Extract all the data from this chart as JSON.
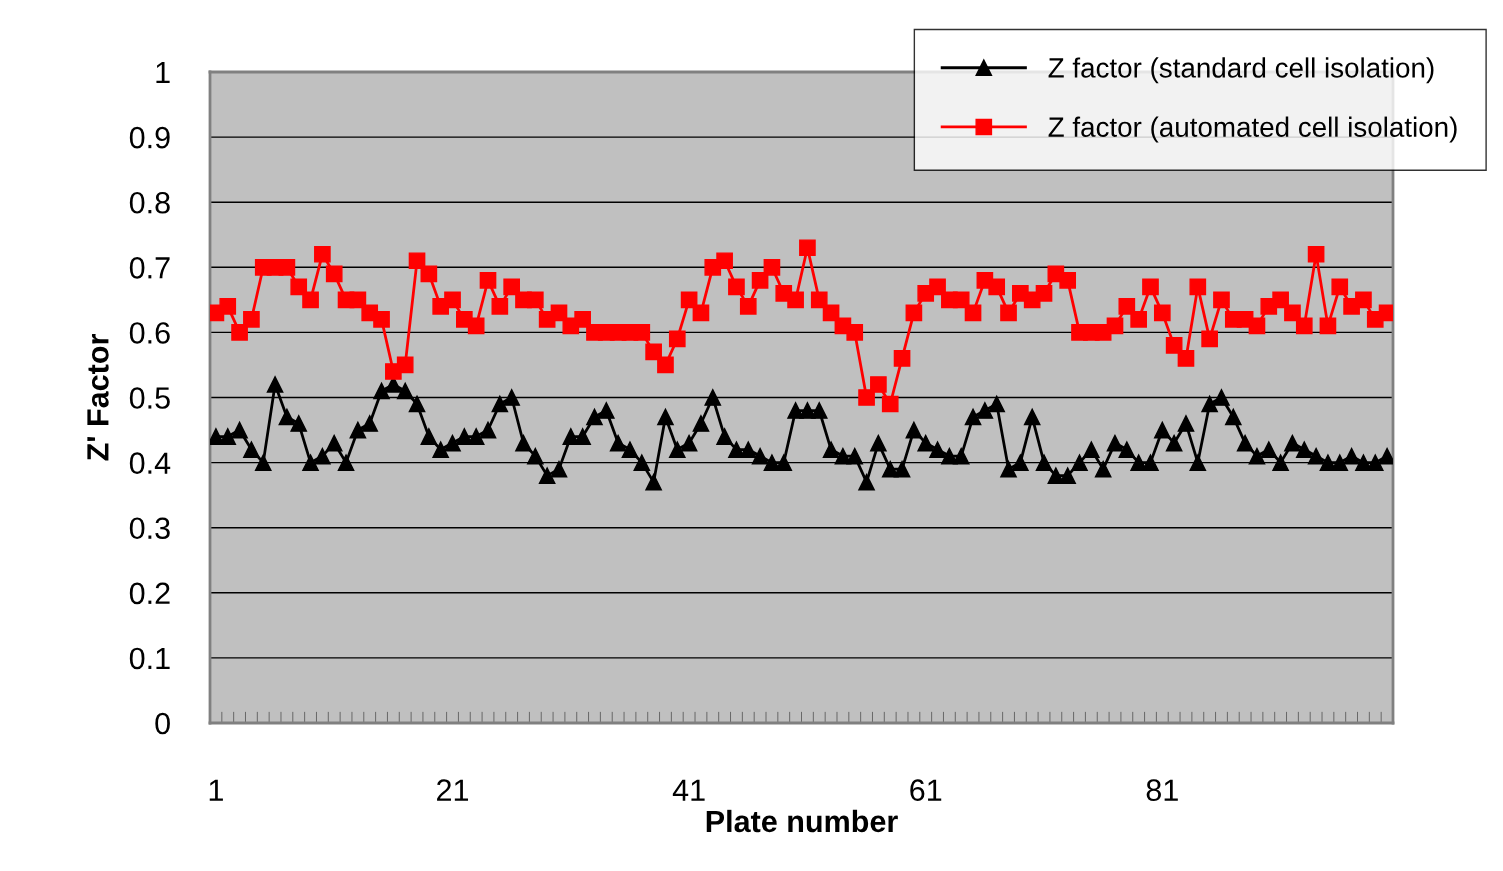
{
  "chart_data": {
    "type": "line",
    "xlabel": "Plate number",
    "ylabel": "Z' Factor",
    "categories": [
      "1",
      null,
      null,
      null,
      null,
      null,
      null,
      null,
      null,
      null,
      null,
      null,
      null,
      null,
      null,
      null,
      null,
      null,
      null,
      null,
      "21",
      null,
      null,
      null,
      null,
      null,
      null,
      null,
      null,
      null,
      null,
      null,
      null,
      null,
      null,
      null,
      null,
      null,
      null,
      null,
      "41",
      null,
      null,
      null,
      null,
      null,
      null,
      null,
      null,
      null,
      null,
      null,
      null,
      null,
      null,
      null,
      null,
      null,
      null,
      null,
      "61",
      null,
      null,
      null,
      null,
      null,
      null,
      null,
      null,
      null,
      null,
      null,
      null,
      null,
      null,
      null,
      null,
      null,
      null,
      null,
      "81",
      null,
      null,
      null,
      null,
      null,
      null,
      null,
      null,
      null,
      null,
      null,
      null,
      null,
      null,
      null,
      null,
      null,
      null,
      null
    ],
    "series": [
      {
        "name": "Z factor (standard cell isolation)",
        "color": "#000000",
        "marker": "triangle",
        "values": [
          0.44,
          0.44,
          0.45,
          0.42,
          0.4,
          0.52,
          0.47,
          0.46,
          0.4,
          0.41,
          0.43,
          0.4,
          0.45,
          0.46,
          0.51,
          0.52,
          0.51,
          0.49,
          0.44,
          0.42,
          0.43,
          0.44,
          0.44,
          0.45,
          0.49,
          0.5,
          0.43,
          0.41,
          0.38,
          0.39,
          0.44,
          0.44,
          0.47,
          0.48,
          0.43,
          0.42,
          0.4,
          0.37,
          0.47,
          0.42,
          0.43,
          0.46,
          0.5,
          0.44,
          0.42,
          0.42,
          0.41,
          0.4,
          0.4,
          0.48,
          0.48,
          0.48,
          0.42,
          0.41,
          0.41,
          0.37,
          0.43,
          0.39,
          0.39,
          0.45,
          0.43,
          0.42,
          0.41,
          0.41,
          0.47,
          0.48,
          0.49,
          0.39,
          0.4,
          0.47,
          0.4,
          0.38,
          0.38,
          0.4,
          0.42,
          0.39,
          0.43,
          0.42,
          0.4,
          0.4,
          0.45,
          0.43,
          0.46,
          0.4,
          0.49,
          0.5,
          0.47,
          0.43,
          0.41,
          0.42,
          0.4,
          0.43,
          0.42,
          0.41,
          0.4,
          0.4,
          0.41,
          0.4,
          0.4,
          0.41
        ]
      },
      {
        "name": "Z factor (automated cell isolation)",
        "color": "#ff0000",
        "marker": "square",
        "values": [
          0.63,
          0.64,
          0.6,
          0.62,
          0.7,
          0.7,
          0.7,
          0.67,
          0.65,
          0.72,
          0.69,
          0.65,
          0.65,
          0.63,
          0.62,
          0.54,
          0.55,
          0.71,
          0.69,
          0.64,
          0.65,
          0.62,
          0.61,
          0.68,
          0.64,
          0.67,
          0.65,
          0.65,
          0.62,
          0.63,
          0.61,
          0.62,
          0.6,
          0.6,
          0.6,
          0.6,
          0.6,
          0.57,
          0.55,
          0.59,
          0.65,
          0.63,
          0.7,
          0.71,
          0.67,
          0.64,
          0.68,
          0.7,
          0.66,
          0.65,
          0.73,
          0.65,
          0.63,
          0.61,
          0.6,
          0.5,
          0.52,
          0.49,
          0.56,
          0.63,
          0.66,
          0.67,
          0.65,
          0.65,
          0.63,
          0.68,
          0.67,
          0.63,
          0.66,
          0.65,
          0.66,
          0.69,
          0.68,
          0.6,
          0.6,
          0.6,
          0.61,
          0.64,
          0.62,
          0.67,
          0.63,
          0.58,
          0.56,
          0.67,
          0.59,
          0.65,
          0.62,
          0.62,
          0.61,
          0.64,
          0.65,
          0.63,
          0.61,
          0.72,
          0.61,
          0.67,
          0.64,
          0.65,
          0.62,
          0.63
        ]
      }
    ],
    "ylim": [
      0,
      1
    ],
    "yticks": [
      0,
      0.1,
      0.2,
      0.3,
      0.4,
      0.5,
      0.6,
      0.7,
      0.8,
      0.9,
      1
    ],
    "grid": "y",
    "legend": "top right",
    "line_style": "solid"
  }
}
